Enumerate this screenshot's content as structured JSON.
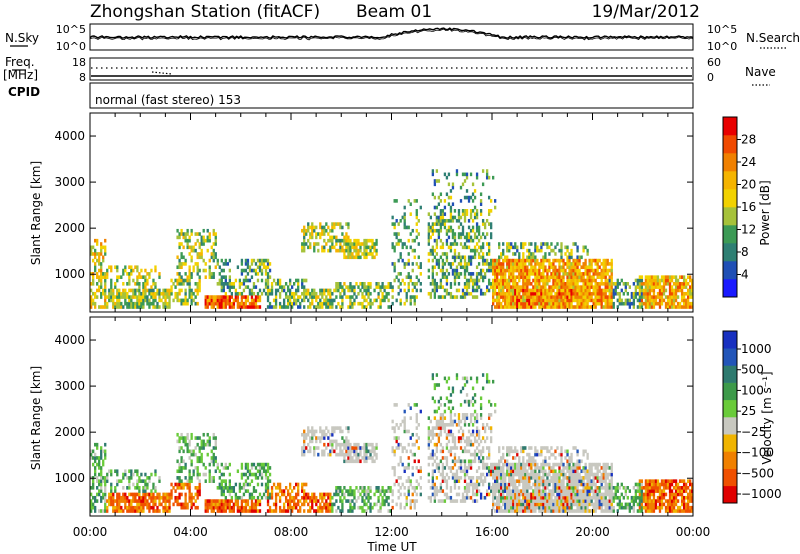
{
  "header": {
    "title": "Zhongshan Station (fitACF)",
    "beam": "Beam 01",
    "date": "19/Mar/2012"
  },
  "top_panels": {
    "nsky_label": "N.Sky",
    "nsearch_label": "N.Search",
    "nsky_ticks": [
      "10^5",
      "10^0"
    ],
    "nsearch_ticks": [
      "10^5",
      "10^0"
    ],
    "freq_label_1": "Freq.",
    "freq_label_2": "[MHz]",
    "freq_ticks": [
      "18",
      "8"
    ],
    "nave_label": "Nave",
    "nave_ticks": [
      "60",
      "0"
    ],
    "cpid_label": "CPID",
    "cpid_text": "normal (fast stereo) 153"
  },
  "colors": {
    "power": [
      "#1a1aff",
      "#1f4fb5",
      "#2e7f73",
      "#3c9a55",
      "#a6c23a",
      "#f2d200",
      "#f5b400",
      "#f08000",
      "#f04a00",
      "#e80000"
    ],
    "velocity": [
      "#1830c0",
      "#2255b8",
      "#2e7a6f",
      "#3d9a4a",
      "#6acb3a",
      "#c8c8c0",
      "#f0b400",
      "#f08000",
      "#f05000",
      "#e00000"
    ]
  },
  "chart_data": [
    {
      "type": "heatmap",
      "title": "Power",
      "xlabel": "Time UT",
      "ylabel": "Slant Range [km]",
      "x_ticks": [
        "00:00",
        "04:00",
        "08:00",
        "12:00",
        "16:00",
        "20:00",
        "00:00"
      ],
      "xlim": [
        0,
        24
      ],
      "y_ticks": [
        1000,
        2000,
        3000,
        4000
      ],
      "ylim": [
        180,
        4500
      ],
      "colorbar_label": "Power [dB]",
      "colorbar_ticks": [
        4,
        8,
        12,
        16,
        20,
        24,
        28
      ],
      "colorbar_range": [
        0,
        32
      ]
    },
    {
      "type": "heatmap",
      "title": "Velocity",
      "xlabel": "Time UT",
      "ylabel": "Slant Range [km]",
      "x_ticks": [
        "00:00",
        "04:00",
        "08:00",
        "12:00",
        "16:00",
        "20:00",
        "00:00"
      ],
      "xlim": [
        0,
        24
      ],
      "y_ticks": [
        1000,
        2000,
        3000,
        4000
      ],
      "ylim": [
        180,
        4500
      ],
      "colorbar_label": "Velocity [m s⁻¹]",
      "colorbar_ticks": [
        "1000",
        "500",
        "100",
        "25",
        "−25",
        "−100",
        "−500",
        "−1000"
      ]
    }
  ]
}
